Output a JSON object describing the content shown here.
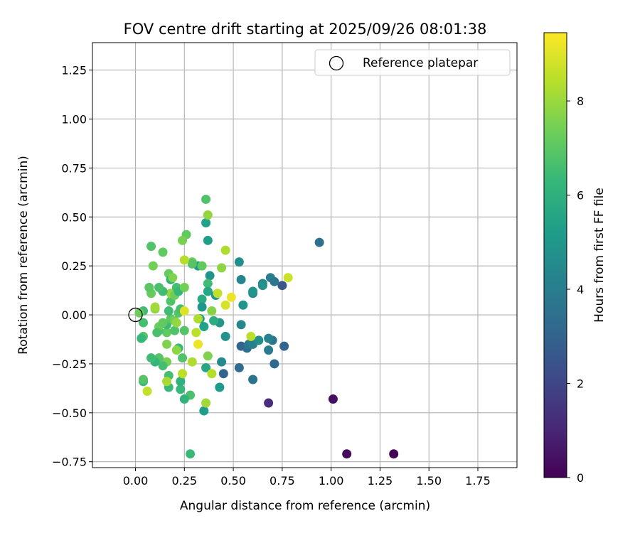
{
  "chart_data": {
    "type": "scatter",
    "title": "FOV centre drift starting at 2025/09/26 08:01:38",
    "xlabel": "Angular distance from reference (arcmin)",
    "ylabel": "Rotation from reference (arcmin)",
    "xlim": [
      -0.22,
      1.95
    ],
    "ylim": [
      -0.78,
      1.39
    ],
    "xticks": [
      0.0,
      0.25,
      0.5,
      0.75,
      1.0,
      1.25,
      1.5,
      1.75
    ],
    "xtick_labels": [
      "0.00",
      "0.25",
      "0.50",
      "0.75",
      "1.00",
      "1.25",
      "1.50",
      "1.75"
    ],
    "yticks": [
      -0.75,
      -0.5,
      -0.25,
      0.0,
      0.25,
      0.5,
      0.75,
      1.0,
      1.25
    ],
    "ytick_labels": [
      "−0.75",
      "−0.50",
      "−0.25",
      "0.00",
      "0.25",
      "0.50",
      "0.75",
      "1.00",
      "1.25"
    ],
    "grid": true,
    "legend": {
      "position": "top-right",
      "entries": [
        "Reference platepar"
      ]
    },
    "reference_point": {
      "x": 0.0,
      "y": 0.0,
      "label": "Reference platepar"
    },
    "colorbar": {
      "label": "Hours from first FF file",
      "min": 0,
      "max": 9.45,
      "ticks": [
        0,
        2,
        4,
        6,
        8
      ],
      "tick_labels": [
        "0",
        "2",
        "4",
        "6",
        "8"
      ],
      "colormap": "viridis",
      "stops": [
        "#440154",
        "#482878",
        "#3e4989",
        "#31688e",
        "#26828e",
        "#1f9e89",
        "#35b779",
        "#6ece58",
        "#b5de2b",
        "#fde725"
      ]
    },
    "points": [
      {
        "x": 1.32,
        "y": -0.71,
        "h": 0.1
      },
      {
        "x": 1.08,
        "y": -0.71,
        "h": 0.2
      },
      {
        "x": 1.01,
        "y": -0.43,
        "h": 0.35
      },
      {
        "x": 0.68,
        "y": -0.45,
        "h": 1.2
      },
      {
        "x": 0.94,
        "y": 0.37,
        "h": 3.5
      },
      {
        "x": 0.75,
        "y": 0.15,
        "h": 2.6
      },
      {
        "x": 0.76,
        "y": -0.16,
        "h": 3.0
      },
      {
        "x": 0.71,
        "y": -0.25,
        "h": 3.2
      },
      {
        "x": 0.45,
        "y": -0.3,
        "h": 3.0
      },
      {
        "x": 0.6,
        "y": -0.33,
        "h": 3.6
      },
      {
        "x": 0.53,
        "y": -0.27,
        "h": 3.3
      },
      {
        "x": 0.54,
        "y": -0.16,
        "h": 3.0
      },
      {
        "x": 0.57,
        "y": -0.17,
        "h": 3.4
      },
      {
        "x": 0.58,
        "y": -0.15,
        "h": 3.8
      },
      {
        "x": 0.6,
        "y": -0.15,
        "h": 4.1
      },
      {
        "x": 0.63,
        "y": -0.13,
        "h": 4.6
      },
      {
        "x": 0.68,
        "y": -0.18,
        "h": 3.9
      },
      {
        "x": 0.7,
        "y": -0.13,
        "h": 3.6
      },
      {
        "x": 0.68,
        "y": -0.12,
        "h": 4.2
      },
      {
        "x": 0.69,
        "y": 0.19,
        "h": 4.0
      },
      {
        "x": 0.71,
        "y": 0.17,
        "h": 3.7
      },
      {
        "x": 0.65,
        "y": 0.16,
        "h": 4.4
      },
      {
        "x": 0.65,
        "y": 0.15,
        "h": 4.8
      },
      {
        "x": 0.6,
        "y": 0.11,
        "h": 4.5
      },
      {
        "x": 0.6,
        "y": 0.12,
        "h": 4.9
      },
      {
        "x": 0.54,
        "y": 0.18,
        "h": 4.3
      },
      {
        "x": 0.53,
        "y": 0.27,
        "h": 4.7
      },
      {
        "x": 0.54,
        "y": -0.05,
        "h": 4.4
      },
      {
        "x": 0.55,
        "y": 0.05,
        "h": 4.9
      },
      {
        "x": 0.46,
        "y": -0.11,
        "h": 4.8
      },
      {
        "x": 0.44,
        "y": -0.24,
        "h": 4.5
      },
      {
        "x": 0.43,
        "y": -0.37,
        "h": 5.1
      },
      {
        "x": 0.35,
        "y": -0.49,
        "h": 5.2
      },
      {
        "x": 0.43,
        "y": -0.04,
        "h": 5.0
      },
      {
        "x": 0.41,
        "y": 0.1,
        "h": 5.0
      },
      {
        "x": 0.38,
        "y": 0.2,
        "h": 4.9
      },
      {
        "x": 0.37,
        "y": 0.38,
        "h": 5.3
      },
      {
        "x": 0.36,
        "y": 0.47,
        "h": 5.4
      },
      {
        "x": 0.37,
        "y": 0.51,
        "h": 7.9
      },
      {
        "x": 0.36,
        "y": 0.59,
        "h": 6.8
      },
      {
        "x": 0.37,
        "y": 0.16,
        "h": 6.5
      },
      {
        "x": 0.37,
        "y": 0.12,
        "h": 5.6
      },
      {
        "x": 0.34,
        "y": 0.08,
        "h": 5.8
      },
      {
        "x": 0.34,
        "y": 0.04,
        "h": 5.0
      },
      {
        "x": 0.33,
        "y": -0.02,
        "h": 5.2
      },
      {
        "x": 0.35,
        "y": -0.06,
        "h": 5.4
      },
      {
        "x": 0.36,
        "y": -0.27,
        "h": 5.6
      },
      {
        "x": 0.32,
        "y": 0.25,
        "h": 5.1
      },
      {
        "x": 0.34,
        "y": 0.25,
        "h": 7.1
      },
      {
        "x": 0.29,
        "y": 0.27,
        "h": 7.3
      },
      {
        "x": 0.29,
        "y": 0.26,
        "h": 6.9
      },
      {
        "x": 0.26,
        "y": 0.41,
        "h": 7.1
      },
      {
        "x": 0.24,
        "y": 0.38,
        "h": 7.5
      },
      {
        "x": 0.25,
        "y": 0.28,
        "h": 8.4
      },
      {
        "x": 0.28,
        "y": -0.71,
        "h": 6.4
      },
      {
        "x": 0.28,
        "y": -0.41,
        "h": 6.7
      },
      {
        "x": 0.25,
        "y": -0.43,
        "h": 6.1
      },
      {
        "x": 0.23,
        "y": -0.38,
        "h": 6.3
      },
      {
        "x": 0.17,
        "y": -0.37,
        "h": 6.4
      },
      {
        "x": 0.23,
        "y": -0.34,
        "h": 6.0
      },
      {
        "x": 0.24,
        "y": -0.3,
        "h": 8.5
      },
      {
        "x": 0.17,
        "y": -0.31,
        "h": 6.6
      },
      {
        "x": 0.16,
        "y": -0.34,
        "h": 8.2
      },
      {
        "x": 0.06,
        "y": -0.39,
        "h": 8.6
      },
      {
        "x": 0.04,
        "y": -0.34,
        "h": 6.3
      },
      {
        "x": 0.04,
        "y": -0.33,
        "h": 6.9
      },
      {
        "x": 0.29,
        "y": -0.24,
        "h": 8.3
      },
      {
        "x": 0.24,
        "y": -0.22,
        "h": 6.8
      },
      {
        "x": 0.22,
        "y": -0.17,
        "h": 6.3
      },
      {
        "x": 0.21,
        "y": -0.18,
        "h": 7.8
      },
      {
        "x": 0.16,
        "y": -0.24,
        "h": 7.5
      },
      {
        "x": 0.14,
        "y": -0.26,
        "h": 6.6
      },
      {
        "x": 0.12,
        "y": -0.22,
        "h": 6.9
      },
      {
        "x": 0.1,
        "y": -0.24,
        "h": 6.2
      },
      {
        "x": 0.08,
        "y": -0.22,
        "h": 6.5
      },
      {
        "x": 0.16,
        "y": -0.15,
        "h": 7.6
      },
      {
        "x": 0.16,
        "y": -0.09,
        "h": 7.1
      },
      {
        "x": 0.12,
        "y": -0.08,
        "h": 6.7
      },
      {
        "x": 0.12,
        "y": -0.06,
        "h": 7.3
      },
      {
        "x": 0.16,
        "y": -0.05,
        "h": 6.4
      },
      {
        "x": 0.18,
        "y": -0.02,
        "h": 7.0
      },
      {
        "x": 0.2,
        "y": -0.08,
        "h": 6.8
      },
      {
        "x": 0.2,
        "y": -0.03,
        "h": 7.4
      },
      {
        "x": 0.21,
        "y": -0.04,
        "h": 7.9
      },
      {
        "x": 0.22,
        "y": 0.01,
        "h": 6.9
      },
      {
        "x": 0.23,
        "y": 0.03,
        "h": 6.6
      },
      {
        "x": 0.25,
        "y": 0.02,
        "h": 9.0
      },
      {
        "x": 0.25,
        "y": -0.08,
        "h": 6.9
      },
      {
        "x": 0.31,
        "y": -0.09,
        "h": 8.5
      },
      {
        "x": 0.32,
        "y": -0.02,
        "h": 8.3
      },
      {
        "x": 0.32,
        "y": -0.15,
        "h": 9.2
      },
      {
        "x": 0.37,
        "y": -0.21,
        "h": 7.6
      },
      {
        "x": 0.36,
        "y": -0.45,
        "h": 8.1
      },
      {
        "x": 0.39,
        "y": -0.3,
        "h": 8.4
      },
      {
        "x": 0.39,
        "y": 0.02,
        "h": 7.7
      },
      {
        "x": 0.4,
        "y": -0.03,
        "h": 5.9
      },
      {
        "x": 0.42,
        "y": 0.11,
        "h": 8.6
      },
      {
        "x": 0.46,
        "y": 0.05,
        "h": 8.9
      },
      {
        "x": 0.49,
        "y": 0.09,
        "h": 9.2
      },
      {
        "x": 0.44,
        "y": 0.24,
        "h": 7.8
      },
      {
        "x": 0.46,
        "y": 0.33,
        "h": 8.3
      },
      {
        "x": 0.59,
        "y": -0.11,
        "h": 8.5
      },
      {
        "x": 0.78,
        "y": 0.19,
        "h": 8.7
      },
      {
        "x": 0.17,
        "y": 0.02,
        "h": 6.5
      },
      {
        "x": 0.18,
        "y": 0.07,
        "h": 6.8
      },
      {
        "x": 0.17,
        "y": 0.21,
        "h": 7.2
      },
      {
        "x": 0.18,
        "y": 0.18,
        "h": 6.1
      },
      {
        "x": 0.19,
        "y": 0.19,
        "h": 7.6
      },
      {
        "x": 0.18,
        "y": 0.11,
        "h": 7.9
      },
      {
        "x": 0.2,
        "y": 0.1,
        "h": 7.3
      },
      {
        "x": 0.21,
        "y": 0.14,
        "h": 6.6
      },
      {
        "x": 0.22,
        "y": 0.12,
        "h": 6.3
      },
      {
        "x": 0.25,
        "y": 0.14,
        "h": 7.4
      },
      {
        "x": 0.14,
        "y": 0.12,
        "h": 6.5
      },
      {
        "x": 0.12,
        "y": 0.14,
        "h": 6.7
      },
      {
        "x": 0.08,
        "y": 0.11,
        "h": 7.2
      },
      {
        "x": 0.07,
        "y": 0.14,
        "h": 7.0
      },
      {
        "x": 0.09,
        "y": 0.25,
        "h": 7.4
      },
      {
        "x": 0.08,
        "y": 0.35,
        "h": 6.8
      },
      {
        "x": 0.14,
        "y": 0.32,
        "h": 7.1
      },
      {
        "x": 0.1,
        "y": 0.03,
        "h": 7.8
      },
      {
        "x": 0.1,
        "y": 0.04,
        "h": 8.1
      },
      {
        "x": 0.04,
        "y": 0.02,
        "h": 6.5
      },
      {
        "x": 0.04,
        "y": -0.04,
        "h": 6.6
      },
      {
        "x": 0.04,
        "y": -0.11,
        "h": 6.9
      },
      {
        "x": 0.03,
        "y": -0.12,
        "h": 6.3
      },
      {
        "x": 0.02,
        "y": 0.01,
        "h": 7.3
      },
      {
        "x": 0.11,
        "y": -0.09,
        "h": 6.7
      },
      {
        "x": 0.14,
        "y": -0.04,
        "h": 7.1
      }
    ]
  }
}
